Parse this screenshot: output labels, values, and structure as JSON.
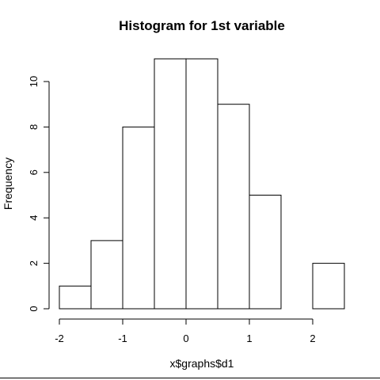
{
  "chart_data": {
    "type": "bar",
    "title": "Histogram for 1st variable",
    "xlabel": "x$graphs$d1",
    "ylabel": "Frequency",
    "bins": [
      {
        "from": -2.0,
        "to": -1.5,
        "count": 1
      },
      {
        "from": -1.5,
        "to": -1.0,
        "count": 3
      },
      {
        "from": -1.0,
        "to": -0.5,
        "count": 8
      },
      {
        "from": -0.5,
        "to": 0.0,
        "count": 11
      },
      {
        "from": 0.0,
        "to": 0.5,
        "count": 11
      },
      {
        "from": 0.5,
        "to": 1.0,
        "count": 9
      },
      {
        "from": 1.0,
        "to": 1.5,
        "count": 5
      },
      {
        "from": 1.5,
        "to": 2.0,
        "count": 0
      },
      {
        "from": 2.0,
        "to": 2.5,
        "count": 2
      }
    ],
    "xlim": [
      -2.0,
      2.5
    ],
    "ylim": [
      0,
      11
    ],
    "x_ticks": [
      -2,
      -1,
      0,
      1,
      2
    ],
    "x_tick_labels": [
      "-2",
      "-1",
      "0",
      "1",
      "2"
    ],
    "y_ticks": [
      0,
      2,
      4,
      6,
      8,
      10
    ],
    "y_tick_labels": [
      "0",
      "2",
      "4",
      "6",
      "8",
      "10"
    ],
    "grid": false,
    "legend": "none"
  }
}
